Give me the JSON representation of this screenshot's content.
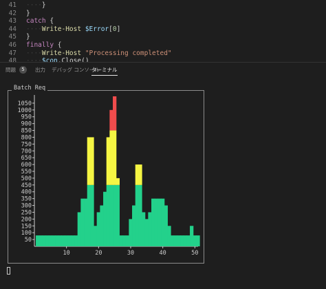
{
  "editor": {
    "lines": [
      {
        "num": "41",
        "indent": "····",
        "tokens": [
          {
            "t": "}",
            "c": ""
          }
        ]
      },
      {
        "num": "42",
        "indent": "",
        "tokens": [
          {
            "t": "}",
            "c": ""
          }
        ]
      },
      {
        "num": "43",
        "indent": "",
        "tokens": [
          {
            "t": "catch",
            "c": "kw"
          },
          {
            "t": " {",
            "c": ""
          }
        ]
      },
      {
        "num": "44",
        "indent": "····",
        "tokens": [
          {
            "t": "Write-Host",
            "c": "cmd"
          },
          {
            "t": " ",
            "c": ""
          },
          {
            "t": "$Error",
            "c": "var"
          },
          {
            "t": "[",
            "c": ""
          },
          {
            "t": "0",
            "c": "num"
          },
          {
            "t": "]",
            "c": ""
          }
        ]
      },
      {
        "num": "45",
        "indent": "",
        "tokens": [
          {
            "t": "}",
            "c": ""
          }
        ]
      },
      {
        "num": "46",
        "indent": "",
        "tokens": [
          {
            "t": "finally",
            "c": "kw"
          },
          {
            "t": " {",
            "c": ""
          }
        ]
      },
      {
        "num": "47",
        "indent": "····",
        "tokens": [
          {
            "t": "Write-Host",
            "c": "cmd"
          },
          {
            "t": " ",
            "c": ""
          },
          {
            "t": "\"Processing completed\"",
            "c": "str"
          }
        ]
      },
      {
        "num": "48",
        "indent": "····",
        "tokens": [
          {
            "t": "$con",
            "c": "var"
          },
          {
            "t": ".Close()",
            "c": ""
          }
        ]
      }
    ]
  },
  "tabs": {
    "problems": "問題",
    "problems_count": "5",
    "output": "出力",
    "debug_console": "デバッグ コンソール",
    "terminal": "ターミナル"
  },
  "chart_data": {
    "type": "bar",
    "title": "Batch Req",
    "xlabel": "",
    "ylabel": "",
    "xlim": [
      0,
      51
    ],
    "ylim": [
      0,
      1100
    ],
    "x_ticks": [
      10,
      20,
      30,
      40,
      50
    ],
    "y_ticks": [
      50,
      100,
      150,
      200,
      250,
      300,
      350,
      400,
      450,
      500,
      550,
      600,
      650,
      700,
      750,
      800,
      850,
      900,
      950,
      1000,
      1050
    ],
    "thresholds": [
      450,
      850
    ],
    "colors": {
      "low": "#23d18b",
      "mid": "#f5f543",
      "high": "#f14c4c"
    },
    "x": [
      1,
      2,
      3,
      4,
      5,
      6,
      7,
      8,
      9,
      10,
      11,
      12,
      13,
      14,
      15,
      16,
      17,
      18,
      19,
      20,
      21,
      22,
      23,
      24,
      25,
      26,
      27,
      28,
      29,
      30,
      31,
      32,
      33,
      34,
      35,
      36,
      37,
      38,
      39,
      40,
      41,
      42,
      43,
      44,
      45,
      46,
      47,
      48,
      49,
      50,
      51
    ],
    "values": [
      80,
      80,
      80,
      80,
      80,
      80,
      80,
      80,
      80,
      80,
      80,
      80,
      80,
      250,
      350,
      350,
      800,
      800,
      150,
      250,
      300,
      400,
      800,
      1000,
      1100,
      500,
      80,
      80,
      80,
      200,
      300,
      600,
      600,
      250,
      200,
      250,
      350,
      350,
      350,
      350,
      300,
      150,
      80,
      80,
      80,
      80,
      80,
      80,
      150,
      80,
      80
    ]
  }
}
